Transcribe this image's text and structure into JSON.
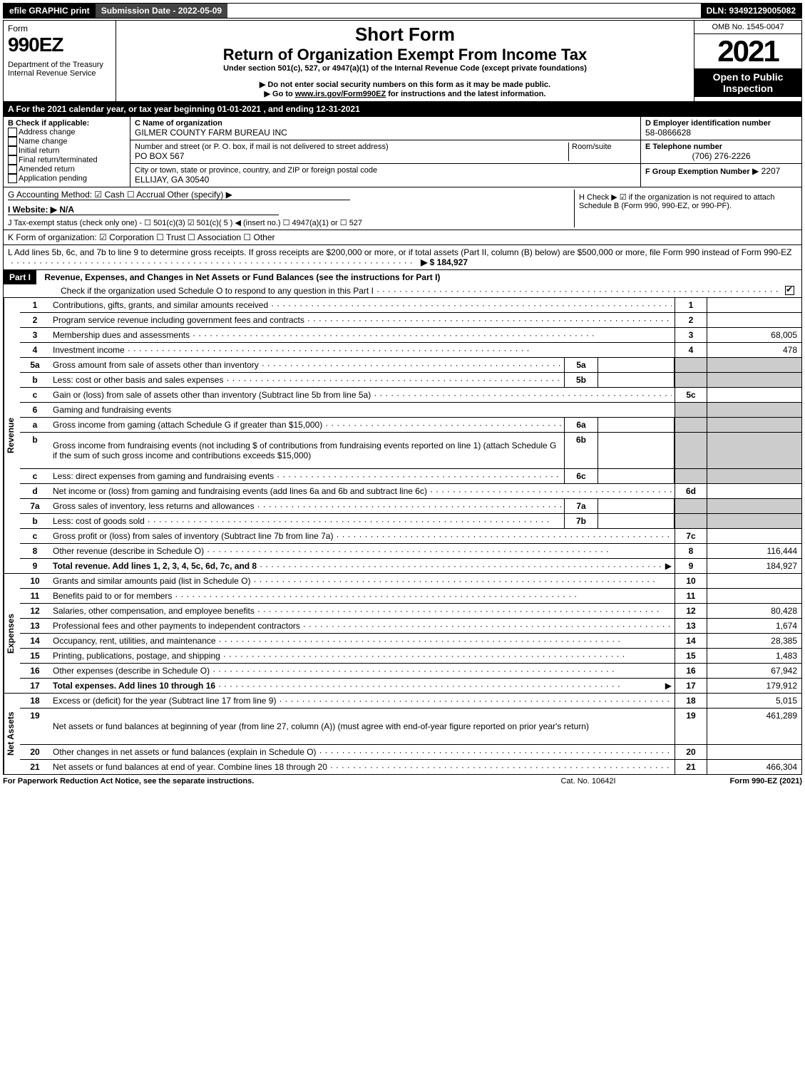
{
  "top": {
    "efile": "efile GRAPHIC print",
    "subdate": "Submission Date - 2022-05-09",
    "dln": "DLN: 93492129005082"
  },
  "header": {
    "form_word": "Form",
    "form_num": "990EZ",
    "dept": "Department of the Treasury",
    "irs": "Internal Revenue Service",
    "short_form": "Short Form",
    "title": "Return of Organization Exempt From Income Tax",
    "subtitle": "Under section 501(c), 527, or 4947(a)(1) of the Internal Revenue Code (except private foundations)",
    "note1": "▶ Do not enter social security numbers on this form as it may be made public.",
    "note2_prefix": "▶ Go to ",
    "note2_link": "www.irs.gov/Form990EZ",
    "note2_suffix": " for instructions and the latest information.",
    "omb": "OMB No. 1545-0047",
    "year": "2021",
    "open": "Open to Public Inspection"
  },
  "a": "A  For the 2021 calendar year, or tax year beginning 01-01-2021 , and ending 12-31-2021",
  "b": {
    "label": "B  Check if applicable:",
    "opts": [
      "Address change",
      "Name change",
      "Initial return",
      "Final return/terminated",
      "Amended return",
      "Application pending"
    ]
  },
  "c": {
    "label": "C Name of organization",
    "name": "GILMER COUNTY FARM BUREAU INC",
    "street_label": "Number and street (or P. O. box, if mail is not delivered to street address)",
    "room": "Room/suite",
    "street": "PO BOX 567",
    "city_label": "City or town, state or province, country, and ZIP or foreign postal code",
    "city": "ELLIJAY, GA  30540"
  },
  "d": {
    "label": "D Employer identification number",
    "val": "58-0866628"
  },
  "e": {
    "label": "E Telephone number",
    "val": "(706) 276-2226"
  },
  "f": {
    "label": "F Group Exemption Number",
    "val": "▶ 2207"
  },
  "g": "G Accounting Method:   ☑ Cash  ☐ Accrual   Other (specify) ▶",
  "h": "H   Check ▶  ☑  if the organization is not required to attach Schedule B (Form 990, 990-EZ, or 990-PF).",
  "i": "I Website: ▶ N/A",
  "j": "J Tax-exempt status (check only one) - ☐ 501(c)(3)  ☑ 501(c)( 5 ) ◀ (insert no.)  ☐ 4947(a)(1) or  ☐ 527",
  "k": "K Form of organization:  ☑ Corporation  ☐ Trust  ☐ Association  ☐ Other",
  "l": {
    "text": "L Add lines 5b, 6c, and 7b to line 9 to determine gross receipts. If gross receipts are $200,000 or more, or if total assets (Part II, column (B) below) are $500,000 or more, file Form 990 instead of Form 990-EZ",
    "amt": "▶ $ 184,927"
  },
  "part1": {
    "label": "Part I",
    "title": "Revenue, Expenses, and Changes in Net Assets or Fund Balances (see the instructions for Part I)",
    "check": "Check if the organization used Schedule O to respond to any question in this Part I"
  },
  "sections": {
    "revenue": "Revenue",
    "expenses": "Expenses",
    "netassets": "Net Assets"
  },
  "lines": [
    {
      "n": "1",
      "d": "Contributions, gifts, grants, and similar amounts received",
      "ln": "1",
      "a": ""
    },
    {
      "n": "2",
      "d": "Program service revenue including government fees and contracts",
      "ln": "2",
      "a": ""
    },
    {
      "n": "3",
      "d": "Membership dues and assessments",
      "ln": "3",
      "a": "68,005"
    },
    {
      "n": "4",
      "d": "Investment income",
      "ln": "4",
      "a": "478"
    },
    {
      "n": "5a",
      "d": "Gross amount from sale of assets other than inventory",
      "sub": "5a",
      "subv": "",
      "shade": true
    },
    {
      "n": "b",
      "d": "Less: cost or other basis and sales expenses",
      "sub": "5b",
      "subv": "",
      "shade": true
    },
    {
      "n": "c",
      "d": "Gain or (loss) from sale of assets other than inventory (Subtract line 5b from line 5a)",
      "ln": "5c",
      "a": ""
    },
    {
      "n": "6",
      "d": "Gaming and fundraising events",
      "shade": true,
      "noline": true
    },
    {
      "n": "a",
      "d": "Gross income from gaming (attach Schedule G if greater than $15,000)",
      "sub": "6a",
      "subv": "",
      "shade": true
    },
    {
      "n": "b",
      "d": "Gross income from fundraising events (not including $                    of contributions from fundraising events reported on line 1) (attach Schedule G if the sum of such gross income and contributions exceeds $15,000)",
      "sub": "6b",
      "subv": "",
      "shade": true,
      "tall": true
    },
    {
      "n": "c",
      "d": "Less: direct expenses from gaming and fundraising events",
      "sub": "6c",
      "subv": "",
      "shade": true
    },
    {
      "n": "d",
      "d": "Net income or (loss) from gaming and fundraising events (add lines 6a and 6b and subtract line 6c)",
      "ln": "6d",
      "a": ""
    },
    {
      "n": "7a",
      "d": "Gross sales of inventory, less returns and allowances",
      "sub": "7a",
      "subv": "",
      "shade": true
    },
    {
      "n": "b",
      "d": "Less: cost of goods sold",
      "sub": "7b",
      "subv": "",
      "shade": true
    },
    {
      "n": "c",
      "d": "Gross profit or (loss) from sales of inventory (Subtract line 7b from line 7a)",
      "ln": "7c",
      "a": ""
    },
    {
      "n": "8",
      "d": "Other revenue (describe in Schedule O)",
      "ln": "8",
      "a": "116,444"
    },
    {
      "n": "9",
      "d": "Total revenue. Add lines 1, 2, 3, 4, 5c, 6d, 7c, and 8",
      "ln": "9",
      "a": "184,927",
      "bold": true,
      "arrow": true
    }
  ],
  "exp_lines": [
    {
      "n": "10",
      "d": "Grants and similar amounts paid (list in Schedule O)",
      "ln": "10",
      "a": ""
    },
    {
      "n": "11",
      "d": "Benefits paid to or for members",
      "ln": "11",
      "a": ""
    },
    {
      "n": "12",
      "d": "Salaries, other compensation, and employee benefits",
      "ln": "12",
      "a": "80,428"
    },
    {
      "n": "13",
      "d": "Professional fees and other payments to independent contractors",
      "ln": "13",
      "a": "1,674"
    },
    {
      "n": "14",
      "d": "Occupancy, rent, utilities, and maintenance",
      "ln": "14",
      "a": "28,385"
    },
    {
      "n": "15",
      "d": "Printing, publications, postage, and shipping",
      "ln": "15",
      "a": "1,483"
    },
    {
      "n": "16",
      "d": "Other expenses (describe in Schedule O)",
      "ln": "16",
      "a": "67,942"
    },
    {
      "n": "17",
      "d": "Total expenses. Add lines 10 through 16",
      "ln": "17",
      "a": "179,912",
      "bold": true,
      "arrow": true
    }
  ],
  "na_lines": [
    {
      "n": "18",
      "d": "Excess or (deficit) for the year (Subtract line 17 from line 9)",
      "ln": "18",
      "a": "5,015"
    },
    {
      "n": "19",
      "d": "Net assets or fund balances at beginning of year (from line 27, column (A)) (must agree with end-of-year figure reported on prior year's return)",
      "ln": "19",
      "a": "461,289",
      "tall": true
    },
    {
      "n": "20",
      "d": "Other changes in net assets or fund balances (explain in Schedule O)",
      "ln": "20",
      "a": ""
    },
    {
      "n": "21",
      "d": "Net assets or fund balances at end of year. Combine lines 18 through 20",
      "ln": "21",
      "a": "466,304"
    }
  ],
  "footer": {
    "left": "For Paperwork Reduction Act Notice, see the separate instructions.",
    "mid": "Cat. No. 10642I",
    "right": "Form 990-EZ (2021)"
  }
}
